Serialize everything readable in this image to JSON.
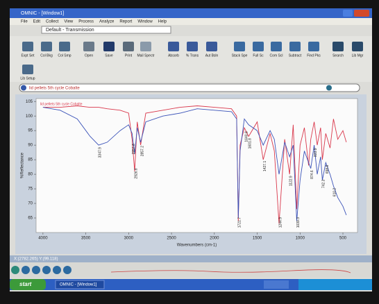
{
  "window": {
    "title": "OMNIC - [Window1]"
  },
  "menu": [
    "File",
    "Edit",
    "Collect",
    "View",
    "Process",
    "Analyze",
    "Report",
    "Window",
    "Help"
  ],
  "experiment": "Default - Transmission",
  "toolbar": [
    "Expt Set",
    "Col Bkg",
    "Col Smp",
    "Open",
    "Save",
    "Print",
    "Mail Spectr",
    "Absorb",
    "% Trans",
    "Aut Bsln",
    "Stack Spe",
    "Full Sc",
    "Com Scl",
    "Subtract",
    "Find Pks",
    "Search",
    "Lib Mgr",
    "Lib Setup"
  ],
  "spectrum_selector": "lid pellets 5th cycle Cobalte",
  "chart_data": {
    "type": "line",
    "x_label": "Wavenumbers (cm-1)",
    "y_label": "%Reflectance",
    "x": [
      4000,
      3800,
      3600,
      3450,
      3350,
      3250,
      3100,
      3000,
      2960,
      2930,
      2900,
      2860,
      2800,
      2600,
      2400,
      2200,
      2000,
      1800,
      1740,
      1721,
      1700,
      1650,
      1600,
      1500,
      1430,
      1350,
      1300,
      1245,
      1180,
      1122,
      1080,
      1039,
      1000,
      950,
      900,
      875,
      835,
      800,
      760,
      740,
      700,
      650,
      610,
      560,
      500,
      460
    ],
    "series": [
      {
        "name": "lid pellets 5th cycle Cobalte",
        "color": "#d9364a",
        "values": [
          103,
          103,
          103.5,
          103,
          103,
          102.5,
          102,
          101,
          92,
          81,
          98,
          90,
          101,
          102,
          103,
          103.5,
          103,
          102.5,
          100,
          64,
          90,
          96,
          93,
          98,
          85,
          94,
          88,
          63,
          92,
          80,
          97,
          68,
          90,
          96,
          83,
          92,
          98,
          90,
          96,
          85,
          94,
          89,
          99,
          92,
          95,
          91
        ]
      },
      {
        "color": "#3a52b8",
        "values": [
          103,
          102,
          99,
          93,
          90,
          91,
          95,
          97,
          94,
          87,
          96,
          91,
          98,
          100,
          101,
          102.5,
          102,
          101.5,
          99,
          65,
          88,
          99,
          97,
          95,
          90,
          95,
          92,
          80,
          91,
          86,
          90,
          64,
          78,
          88,
          84,
          82,
          90,
          80,
          86,
          78,
          84,
          80,
          76,
          72,
          69,
          66
        ]
      }
    ],
    "xlim": [
      4080,
      330
    ],
    "ylim": [
      60,
      106
    ],
    "xticks": [
      4000,
      3500,
      3000,
      2500,
      2000,
      1500,
      1000,
      500
    ],
    "yticks": [
      65,
      70,
      75,
      80,
      85,
      90,
      95,
      100,
      105
    ],
    "peaks": [
      3347.9,
      2957.8,
      2926.8,
      2857.2,
      1721.7,
      1640.8,
      1601.8,
      1427.1,
      1244.9,
      1122.9,
      1039.3,
      874.6,
      833.9,
      742.3,
      698.8,
      610.2
    ]
  },
  "status": {
    "cursor": "X:(2782.265) Y:(99.118)"
  },
  "taskbar": {
    "start": "start",
    "task": "OMNIC - [Window1]"
  }
}
